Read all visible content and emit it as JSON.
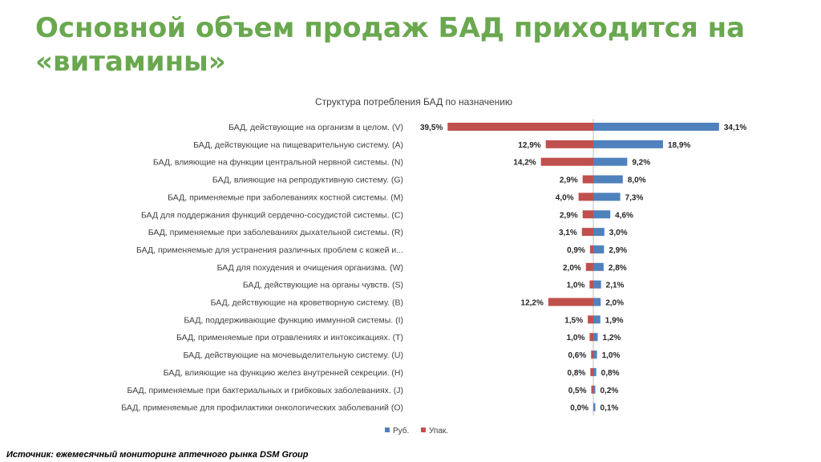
{
  "slide": {
    "title": "Основной объем продаж БАД приходится на «витамины»",
    "source": "Источник: ежемесячный мониторинг аптечного рынка DSM Group"
  },
  "chart_data": {
    "type": "bar",
    "orientation": "horizontal-diverging",
    "title": "Структура потребления БАД по назначению",
    "categories": [
      "БАД, действующие на организм в целом. (V)",
      "БАД, действующие на пищеварительную систему. (A)",
      "БАД, влияющие на функции центральной нервной системы. (N)",
      "БАД, влияющие на репродуктивную систему. (G)",
      "БАД, применяемые при заболеваниях костной системы. (M)",
      "БАД для поддержания функций сердечно-сосудистой системы. (C)",
      "БАД, применяемые при заболеваниях дыхательной системы. (R)",
      "БАД, применяемые для устранения различных проблем с кожей и...",
      "БАД для похудения и очищения организма. (W)",
      "БАД, действующие на органы чувств. (S)",
      "БАД, действующие на кроветворную систему. (B)",
      "БАД, поддерживающие функцию иммунной системы. (I)",
      "БАД, применяемые при отравлениях и интоксикациях. (T)",
      "БАД, действующие на мочевыделительную систему. (U)",
      "БАД, влияющие на функцию желез внутренней секреции. (H)",
      "БАД, применяемые при бактериальных и грибковых заболеваниях. (J)",
      "БАД, применяемые для профилактики онкологических заболеваний (O)"
    ],
    "series": [
      {
        "name": "Руб.",
        "color": "#4f81bd",
        "side": "right",
        "values": [
          34.1,
          18.9,
          9.2,
          8.0,
          7.3,
          4.6,
          3.0,
          2.9,
          2.8,
          2.1,
          2.0,
          1.9,
          1.2,
          1.0,
          0.8,
          0.2,
          0.1
        ],
        "labels": [
          "34,1%",
          "18,9%",
          "9,2%",
          "8,0%",
          "7,3%",
          "4,6%",
          "3,0%",
          "2,9%",
          "2,8%",
          "2,1%",
          "2,0%",
          "1,9%",
          "1,2%",
          "1,0%",
          "0,8%",
          "0,2%",
          "0,1%"
        ]
      },
      {
        "name": "Упак.",
        "color": "#c0504d",
        "side": "left",
        "values": [
          39.5,
          12.9,
          14.2,
          2.9,
          4.0,
          2.9,
          3.1,
          0.9,
          2.0,
          1.0,
          12.2,
          1.5,
          1.0,
          0.6,
          0.8,
          0.5,
          0.0
        ],
        "labels": [
          "39,5%",
          "12,9%",
          "14,2%",
          "2,9%",
          "4,0%",
          "2,9%",
          "3,1%",
          "0,9%",
          "2,0%",
          "1,0%",
          "12,2%",
          "1,5%",
          "1,0%",
          "0,6%",
          "0,8%",
          "0,5%",
          "0,0%"
        ]
      }
    ],
    "legend_position": "bottom",
    "grid": false
  }
}
